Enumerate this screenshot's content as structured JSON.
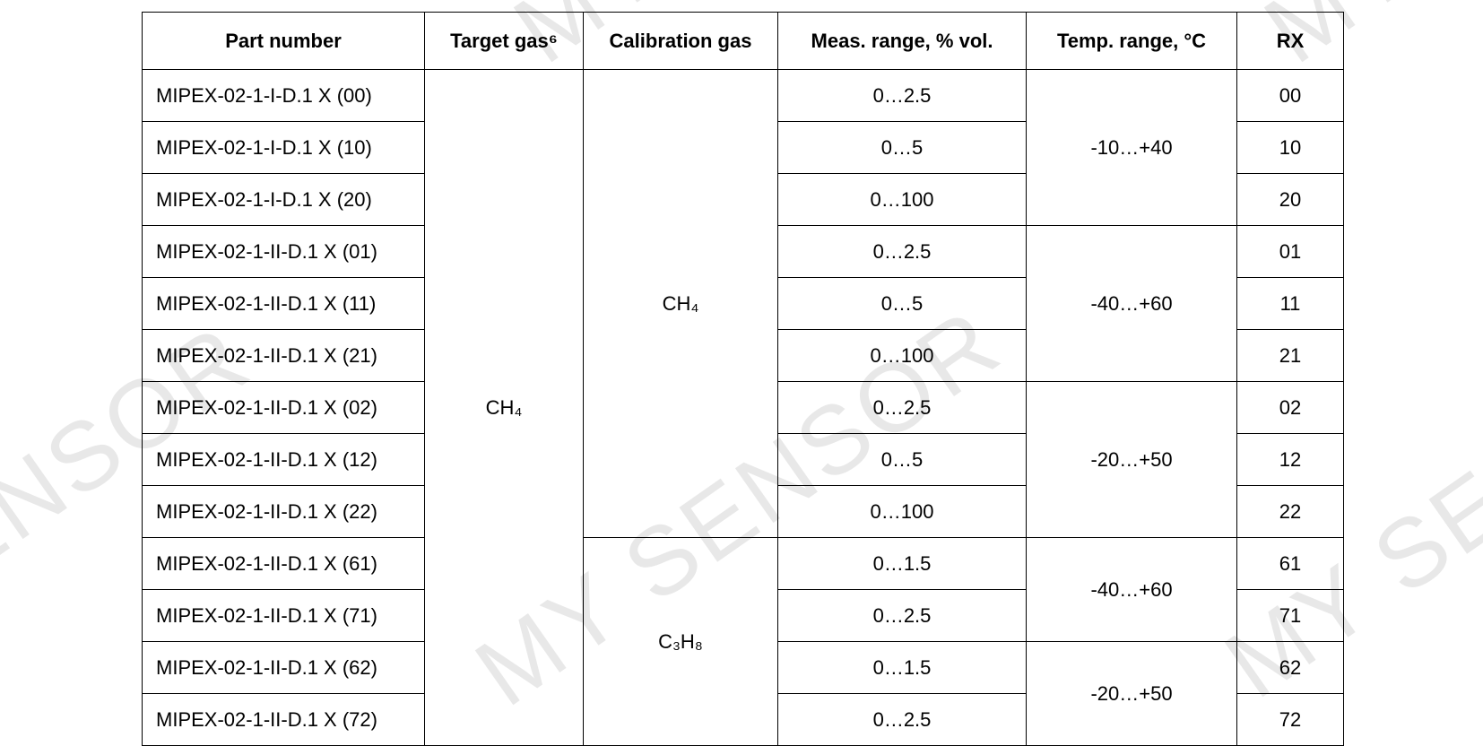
{
  "watermark": "MY SENSOR",
  "table": {
    "header": [
      "Part number",
      "Target gas⁶",
      "Calibration gas",
      "Meas. range, % vol.",
      "Temp. range, °C",
      "RX"
    ],
    "target_gas": "CH₄",
    "calibration_groups": [
      {
        "gas": "CH₄",
        "temp_groups": [
          {
            "temp": "-10…+40",
            "rows": [
              [
                "MIPEX-02-1-I-D.1 X (00)",
                "0…2.5",
                "00"
              ],
              [
                "MIPEX-02-1-I-D.1 X (10)",
                "0…5",
                "10"
              ],
              [
                "MIPEX-02-1-I-D.1 X (20)",
                "0…100",
                "20"
              ]
            ]
          },
          {
            "temp": "-40…+60",
            "rows": [
              [
                "MIPEX-02-1-II-D.1 X (01)",
                "0…2.5",
                "01"
              ],
              [
                "MIPEX-02-1-II-D.1 X (11)",
                "0…5",
                "11"
              ],
              [
                "MIPEX-02-1-II-D.1 X (21)",
                "0…100",
                "21"
              ]
            ]
          },
          {
            "temp": "-20…+50",
            "rows": [
              [
                "MIPEX-02-1-II-D.1 X (02)",
                "0…2.5",
                "02"
              ],
              [
                "MIPEX-02-1-II-D.1 X (12)",
                "0…5",
                "12"
              ],
              [
                "MIPEX-02-1-II-D.1 X (22)",
                "0…100",
                "22"
              ]
            ]
          }
        ]
      },
      {
        "gas": "C₃H₈",
        "temp_groups": [
          {
            "temp": "-40…+60",
            "rows": [
              [
                "MIPEX-02-1-II-D.1 X (61)",
                "0…1.5",
                "61"
              ],
              [
                "MIPEX-02-1-II-D.1 X (71)",
                "0…2.5",
                "71"
              ]
            ]
          },
          {
            "temp": "-20…+50",
            "rows": [
              [
                "MIPEX-02-1-II-D.1 X (62)",
                "0…1.5",
                "62"
              ],
              [
                "MIPEX-02-1-II-D.1 X (72)",
                "0…2.5",
                "72"
              ]
            ]
          }
        ]
      }
    ]
  }
}
